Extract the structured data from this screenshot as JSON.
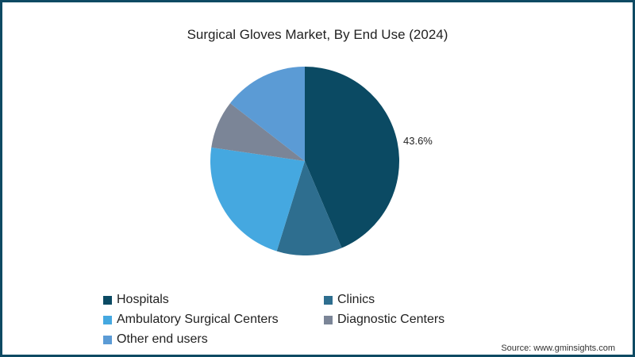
{
  "title": "Surgical Gloves Market, By End Use (2024)",
  "source": "Source: www.gminsights.com",
  "chart_data": {
    "type": "pie",
    "title": "Surgical Gloves Market, By End Use (2024)",
    "categories": [
      "Hospitals",
      "Clinics",
      "Ambulatory Surgical Centers",
      "Diagnostic Centers",
      "Other end users"
    ],
    "values": [
      43.6,
      11.2,
      22.5,
      8.2,
      14.5
    ],
    "unit": "%",
    "colors": [
      "#0b4a63",
      "#2e6e8f",
      "#45a8e0",
      "#7b8597",
      "#5b9bd5"
    ],
    "start_angle_deg": 0,
    "direction": "clockwise",
    "data_labels": [
      {
        "category": "Hospitals",
        "text": "43.6%"
      }
    ],
    "legend_position": "bottom"
  },
  "legend": [
    {
      "label": "Hospitals",
      "color": "#0b4a63"
    },
    {
      "label": "Clinics",
      "color": "#2e6e8f"
    },
    {
      "label": "Ambulatory Surgical Centers",
      "color": "#45a8e0"
    },
    {
      "label": "Diagnostic Centers",
      "color": "#7b8597"
    },
    {
      "label": "Other end users",
      "color": "#5b9bd5"
    }
  ],
  "pie_label": "43.6%"
}
